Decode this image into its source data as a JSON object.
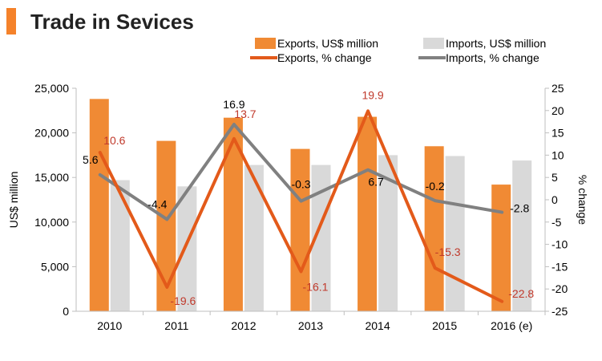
{
  "colors": {
    "accent": "#f5822a",
    "title": "#222222",
    "exports_bar": "#f08a34",
    "imports_bar": "#d9d9d9",
    "exports_line": "#e35a1a",
    "imports_line": "#808080",
    "exports_label": "#c0392b",
    "imports_label": "#000000"
  },
  "chart_data": {
    "type": "bar",
    "title": "Trade in Sevices",
    "categories": [
      "2010",
      "2011",
      "2012",
      "2013",
      "2014",
      "2015",
      "2016 (e)"
    ],
    "ylabel": "US$ million",
    "y2label": "% change",
    "ylim": [
      0,
      25000
    ],
    "y2lim": [
      -25,
      25
    ],
    "yticks": [
      0,
      5000,
      10000,
      15000,
      20000,
      25000
    ],
    "yticklabels": [
      "0",
      "5,000",
      "10,000",
      "15,000",
      "20,000",
      "25,000"
    ],
    "y2ticks": [
      25,
      20,
      15,
      10,
      5,
      0,
      -5,
      -10,
      -15,
      -20,
      -25
    ],
    "y2ticklabels": [
      "25",
      "20",
      "15",
      "10",
      "5",
      "0",
      "-5",
      "-10",
      "-15",
      "-20",
      "-25"
    ],
    "series": [
      {
        "name": "Exports, US$ million",
        "kind": "bar",
        "axis": "left",
        "values": [
          23800,
          19100,
          21700,
          18200,
          21800,
          18500,
          14200
        ]
      },
      {
        "name": "Imports, US$ million",
        "kind": "bar",
        "axis": "left",
        "values": [
          14700,
          14000,
          16400,
          16400,
          17500,
          17400,
          16900
        ]
      },
      {
        "name": "Exports, % change",
        "kind": "line",
        "axis": "right",
        "values": [
          10.6,
          -19.6,
          13.7,
          -16.1,
          19.9,
          -15.3,
          -22.8
        ],
        "labels": [
          "10.6",
          "-19.6",
          "13.7",
          "-16.1",
          "19.9",
          "-15.3",
          "-22.8"
        ]
      },
      {
        "name": "Imports, % change",
        "kind": "line",
        "axis": "right",
        "values": [
          5.6,
          -4.4,
          16.9,
          -0.3,
          6.7,
          -0.2,
          -2.8
        ],
        "labels": [
          "5.6",
          "-4.4",
          "16.9",
          "-0.3",
          "6.7",
          "-0.2",
          "-2.8"
        ]
      }
    ],
    "legend": [
      {
        "label": "Exports, US$ million",
        "kind": "bar"
      },
      {
        "label": "Imports, US$ million",
        "kind": "bar"
      },
      {
        "label": "Exports, % change",
        "kind": "line"
      },
      {
        "label": "Imports, % change",
        "kind": "line"
      }
    ],
    "legend_position": "top"
  }
}
